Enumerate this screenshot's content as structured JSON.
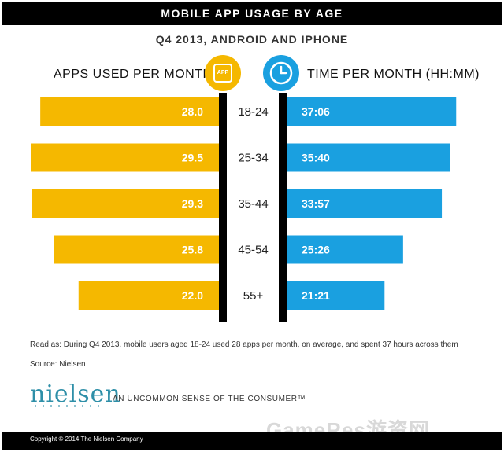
{
  "header": {
    "title": "MOBILE APP USAGE BY AGE",
    "subtitle": "Q4 2013, ANDROID AND IPHONE",
    "left_label": "APPS USED PER MONTH",
    "right_label": "TIME PER MONTH (HH:MM)",
    "app_icon_text": "APP"
  },
  "colors": {
    "apps": "#f5b800",
    "time": "#1aa0e0",
    "axis": "#000000"
  },
  "chart_data": {
    "type": "bar",
    "categories": [
      "18-24",
      "25-34",
      "35-44",
      "45-54",
      "55+"
    ],
    "series": [
      {
        "name": "APPS USED PER MONTH",
        "values": [
          28.0,
          29.5,
          29.3,
          25.8,
          22.0
        ],
        "labels": [
          "28.0",
          "29.5",
          "29.3",
          "25.8",
          "22.0"
        ]
      },
      {
        "name": "TIME PER MONTH (HH:MM)",
        "values": [
          37.1,
          35.67,
          33.95,
          25.43,
          21.35
        ],
        "labels": [
          "37:06",
          "35:40",
          "33:57",
          "25:26",
          "21:21"
        ]
      }
    ]
  },
  "footer": {
    "note": "Read as: During Q4 2013, mobile users aged 18-24 used 28 apps per month, on average, and spent 37 hours across them",
    "source": "Source: Nielsen",
    "logo": "nielsen",
    "tagline": "AN UNCOMMON SENSE OF THE CONSUMER™",
    "copyright": "Copyright © 2014 The Nielsen Company",
    "watermark": "GameRes游资网"
  }
}
